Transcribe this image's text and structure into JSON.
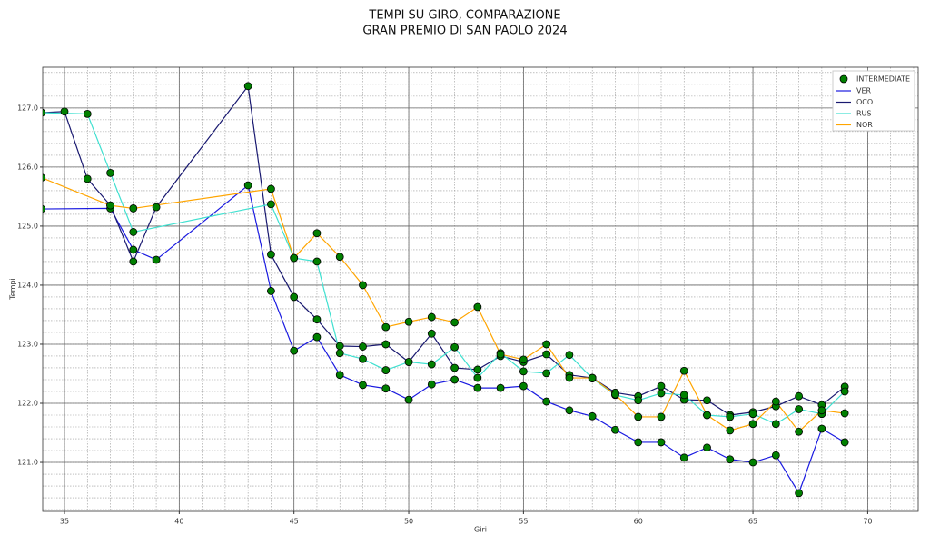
{
  "chart_data": {
    "type": "line",
    "title": [
      "TEMPI SU GIRO, COMPARAZIONE",
      "GRAN PREMIO DI SAN PAOLO 2024"
    ],
    "xlabel": "Giri",
    "ylabel": "Tempi",
    "xlim": [
      34.05,
      72.2
    ],
    "ylim": [
      120.17,
      127.69
    ],
    "xticks": [
      35,
      40,
      45,
      50,
      55,
      60,
      65,
      70
    ],
    "yticks": [
      {
        "value": 121,
        "label": "121.0"
      },
      {
        "value": 122,
        "label": "122.0"
      },
      {
        "value": 123,
        "label": "123.0"
      },
      {
        "value": 124,
        "label": "124.0"
      },
      {
        "value": 125,
        "label": "125.0"
      },
      {
        "value": 126,
        "label": "126.0"
      },
      {
        "value": 127,
        "label": "127.0"
      }
    ],
    "grid": true,
    "legend": "upper right",
    "marker_name": "INTERMEDIATE",
    "marker_color": "#008000",
    "series": [
      {
        "name": "VER",
        "color": "#1a1ae0",
        "x": [
          34,
          37,
          38,
          39,
          43,
          44,
          45,
          46,
          47,
          48,
          49,
          50,
          51,
          52,
          53,
          54,
          55,
          56,
          57,
          58,
          59,
          60,
          61,
          62,
          63,
          64,
          65,
          66,
          67,
          68,
          69
        ],
        "values": [
          125.29,
          125.3,
          124.6,
          124.43,
          125.69,
          123.9,
          122.89,
          123.12,
          122.48,
          122.31,
          122.25,
          122.06,
          122.32,
          122.4,
          122.26,
          122.26,
          122.29,
          122.03,
          121.88,
          121.78,
          121.55,
          121.34,
          121.34,
          121.08,
          121.25,
          121.05,
          121.0,
          121.12,
          120.48,
          121.57,
          121.34
        ]
      },
      {
        "name": "OCO",
        "color": "#191970",
        "x": [
          34,
          35,
          36,
          37,
          38,
          39,
          43,
          44,
          45,
          46,
          47,
          48,
          49,
          50,
          51,
          52,
          53,
          54,
          55,
          56,
          57,
          58,
          59,
          60,
          61,
          62,
          63,
          64,
          65,
          66,
          67,
          68,
          69
        ],
        "values": [
          126.92,
          126.94,
          125.8,
          125.35,
          124.4,
          125.32,
          127.37,
          124.52,
          123.8,
          123.42,
          122.97,
          122.96,
          123.0,
          122.7,
          123.18,
          122.6,
          122.57,
          122.8,
          122.7,
          122.83,
          122.48,
          122.43,
          122.18,
          122.12,
          122.29,
          122.06,
          122.05,
          121.8,
          121.85,
          121.95,
          122.12,
          121.97,
          122.28
        ]
      },
      {
        "name": "RUS",
        "color": "#40e0d0",
        "x": [
          34,
          36,
          37,
          38,
          44,
          45,
          46,
          47,
          48,
          49,
          50,
          51,
          52,
          53,
          54,
          55,
          56,
          57,
          58,
          59,
          60,
          61,
          62,
          63,
          64,
          65,
          66,
          67,
          68,
          69
        ],
        "values": [
          126.92,
          126.9,
          125.9,
          124.9,
          125.37,
          124.46,
          124.4,
          122.85,
          122.75,
          122.56,
          122.7,
          122.66,
          122.95,
          122.43,
          122.85,
          122.54,
          122.51,
          122.82,
          122.42,
          122.14,
          122.05,
          122.17,
          122.14,
          121.8,
          121.77,
          121.82,
          121.65,
          121.9,
          121.82,
          122.2
        ]
      },
      {
        "name": "NOR",
        "color": "#ffa500",
        "x": [
          34,
          37,
          38,
          44,
          45,
          46,
          47,
          48,
          49,
          50,
          51,
          52,
          53,
          54,
          55,
          56,
          57,
          58,
          59,
          60,
          61,
          62,
          63,
          64,
          65,
          66,
          67,
          68,
          69
        ],
        "values": [
          125.82,
          125.35,
          125.3,
          125.63,
          124.46,
          124.88,
          124.48,
          124.0,
          123.29,
          123.38,
          123.46,
          123.37,
          123.63,
          122.83,
          122.74,
          123.0,
          122.43,
          122.43,
          122.15,
          121.77,
          121.77,
          122.55,
          121.8,
          121.54,
          121.65,
          122.03,
          121.52,
          121.88,
          121.83
        ]
      }
    ]
  }
}
